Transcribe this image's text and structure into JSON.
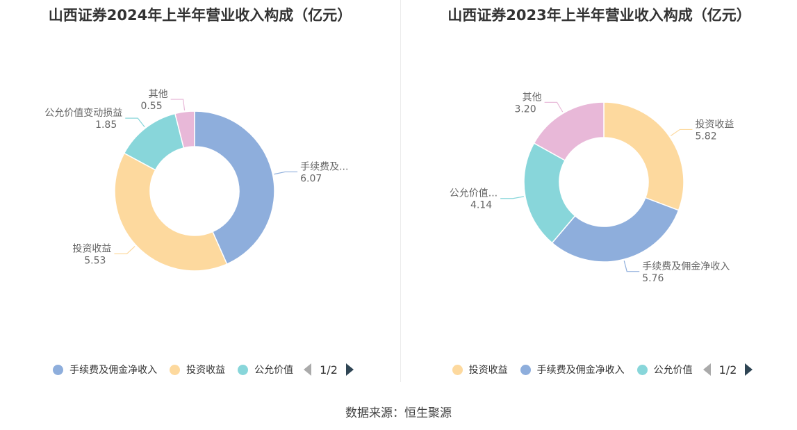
{
  "chart_data": [
    {
      "type": "pie",
      "title": "山西证券2024年上半年营业收入构成（亿元）",
      "slices": [
        {
          "name": "手续费及佣金净收入",
          "label": "手续费及...",
          "value": 6.07,
          "display": "6.07",
          "color": "#8eaedc"
        },
        {
          "name": "投资收益",
          "label": "投资收益",
          "value": 5.53,
          "display": "5.53",
          "color": "#fdd99e"
        },
        {
          "name": "公允价值变动损益",
          "label": "公允价值变动损益",
          "value": 1.85,
          "display": "1.85",
          "color": "#88d6da"
        },
        {
          "name": "其他",
          "label": "其他",
          "value": 0.55,
          "display": "0.55",
          "color": "#e8b8d8"
        }
      ],
      "legend": {
        "items": [
          {
            "label": "手续费及佣金净收入",
            "color": "#8eaedc"
          },
          {
            "label": "投资收益",
            "color": "#fdd99e"
          },
          {
            "label": "公允价值",
            "color": "#88d6da"
          }
        ],
        "page": "1/2",
        "placement": "bottom"
      }
    },
    {
      "type": "pie",
      "title": "山西证券2023年上半年营业收入构成（亿元）",
      "slices": [
        {
          "name": "投资收益",
          "label": "投资收益",
          "value": 5.82,
          "display": "5.82",
          "color": "#fdd99e"
        },
        {
          "name": "手续费及佣金净收入",
          "label": "手续费及佣金净收入",
          "value": 5.76,
          "display": "5.76",
          "color": "#8eaedc"
        },
        {
          "name": "公允价值",
          "label": "公允价值...",
          "value": 4.14,
          "display": "4.14",
          "color": "#88d6da"
        },
        {
          "name": "其他",
          "label": "其他",
          "value": 3.2,
          "display": "3.20",
          "color": "#e8b8d8"
        }
      ],
      "legend": {
        "items": [
          {
            "label": "投资收益",
            "color": "#fdd99e"
          },
          {
            "label": "手续费及佣金净收入",
            "color": "#8eaedc"
          },
          {
            "label": "公允价值",
            "color": "#88d6da"
          }
        ],
        "page": "1/2",
        "placement": "bottom"
      }
    }
  ],
  "footer": {
    "source": "数据来源：恒生聚源"
  }
}
